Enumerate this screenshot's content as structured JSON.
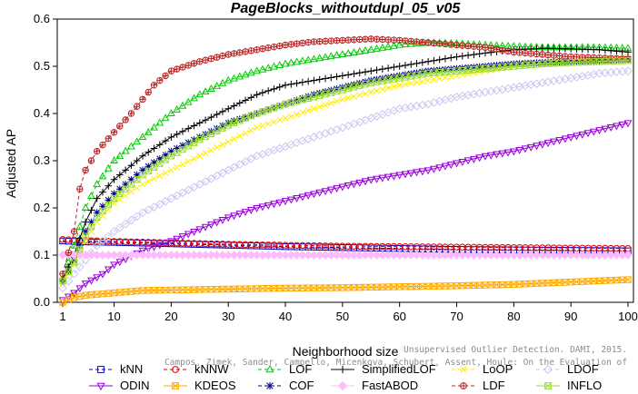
{
  "chart_data": {
    "type": "line",
    "title": "PageBlocks_withoutdupl_05_v05",
    "xlabel": "Neighborhood size",
    "ylabel": "Adjusted AP",
    "xlim": [
      1,
      100
    ],
    "ylim": [
      0,
      0.6
    ],
    "xticks": [
      1,
      10,
      20,
      30,
      40,
      50,
      60,
      70,
      80,
      90,
      100
    ],
    "yticks": [
      0.0,
      0.1,
      0.2,
      0.3,
      0.4,
      0.5,
      0.6
    ],
    "grid": false,
    "legend_position": "bottom",
    "series": [
      {
        "name": "kNN",
        "color": "#0000cc",
        "marker": "square",
        "dash": "4,3",
        "points": [
          [
            1,
            0.13
          ],
          [
            5,
            0.128
          ],
          [
            10,
            0.127
          ],
          [
            20,
            0.124
          ],
          [
            30,
            0.121
          ],
          [
            40,
            0.118
          ],
          [
            50,
            0.116
          ],
          [
            60,
            0.114
          ],
          [
            70,
            0.112
          ],
          [
            80,
            0.111
          ],
          [
            90,
            0.11
          ],
          [
            100,
            0.109
          ]
        ]
      },
      {
        "name": "kNNW",
        "color": "#dd0000",
        "marker": "circle",
        "dash": "4,3",
        "points": [
          [
            1,
            0.133
          ],
          [
            5,
            0.131
          ],
          [
            10,
            0.129
          ],
          [
            20,
            0.126
          ],
          [
            30,
            0.123
          ],
          [
            40,
            0.121
          ],
          [
            50,
            0.119
          ],
          [
            60,
            0.118
          ],
          [
            70,
            0.117
          ],
          [
            80,
            0.116
          ],
          [
            90,
            0.115
          ],
          [
            100,
            0.114
          ]
        ]
      },
      {
        "name": "LOF",
        "color": "#00cc00",
        "marker": "triangle-up",
        "dash": "4,3",
        "points": [
          [
            1,
            0.05
          ],
          [
            3,
            0.12
          ],
          [
            5,
            0.2
          ],
          [
            7,
            0.25
          ],
          [
            10,
            0.3
          ],
          [
            15,
            0.35
          ],
          [
            20,
            0.4
          ],
          [
            25,
            0.44
          ],
          [
            30,
            0.47
          ],
          [
            35,
            0.49
          ],
          [
            40,
            0.505
          ],
          [
            45,
            0.515
          ],
          [
            50,
            0.525
          ],
          [
            55,
            0.535
          ],
          [
            60,
            0.545
          ],
          [
            65,
            0.55
          ],
          [
            70,
            0.548
          ],
          [
            75,
            0.545
          ],
          [
            80,
            0.542
          ],
          [
            85,
            0.54
          ],
          [
            90,
            0.54
          ],
          [
            95,
            0.54
          ],
          [
            100,
            0.538
          ]
        ]
      },
      {
        "name": "SimplifiedLOF",
        "color": "#000000",
        "marker": "plus",
        "dash": "",
        "points": [
          [
            1,
            0.05
          ],
          [
            3,
            0.1
          ],
          [
            5,
            0.17
          ],
          [
            7,
            0.22
          ],
          [
            10,
            0.26
          ],
          [
            15,
            0.31
          ],
          [
            20,
            0.35
          ],
          [
            25,
            0.38
          ],
          [
            30,
            0.41
          ],
          [
            35,
            0.44
          ],
          [
            40,
            0.46
          ],
          [
            45,
            0.47
          ],
          [
            50,
            0.48
          ],
          [
            55,
            0.49
          ],
          [
            60,
            0.5
          ],
          [
            65,
            0.51
          ],
          [
            70,
            0.52
          ],
          [
            75,
            0.528
          ],
          [
            80,
            0.535
          ],
          [
            85,
            0.538
          ],
          [
            90,
            0.537
          ],
          [
            95,
            0.535
          ],
          [
            100,
            0.53
          ]
        ]
      },
      {
        "name": "LoOP",
        "color": "#ffee00",
        "marker": "x",
        "dash": "4,3",
        "points": [
          [
            1,
            0.04
          ],
          [
            3,
            0.08
          ],
          [
            5,
            0.13
          ],
          [
            7,
            0.17
          ],
          [
            10,
            0.21
          ],
          [
            15,
            0.25
          ],
          [
            20,
            0.28
          ],
          [
            25,
            0.31
          ],
          [
            30,
            0.34
          ],
          [
            35,
            0.37
          ],
          [
            40,
            0.39
          ],
          [
            45,
            0.41
          ],
          [
            50,
            0.43
          ],
          [
            55,
            0.445
          ],
          [
            60,
            0.46
          ],
          [
            65,
            0.47
          ],
          [
            70,
            0.48
          ],
          [
            75,
            0.49
          ],
          [
            80,
            0.5
          ],
          [
            85,
            0.505
          ],
          [
            90,
            0.51
          ],
          [
            95,
            0.515
          ],
          [
            100,
            0.52
          ]
        ]
      },
      {
        "name": "LDOF",
        "color": "#c8c8f0",
        "marker": "diamond",
        "dash": "4,3",
        "points": [
          [
            1,
            0.03
          ],
          [
            3,
            0.06
          ],
          [
            5,
            0.09
          ],
          [
            7,
            0.12
          ],
          [
            10,
            0.15
          ],
          [
            15,
            0.19
          ],
          [
            20,
            0.22
          ],
          [
            25,
            0.25
          ],
          [
            30,
            0.28
          ],
          [
            35,
            0.31
          ],
          [
            40,
            0.33
          ],
          [
            45,
            0.35
          ],
          [
            50,
            0.37
          ],
          [
            55,
            0.39
          ],
          [
            60,
            0.41
          ],
          [
            65,
            0.42
          ],
          [
            70,
            0.435
          ],
          [
            75,
            0.445
          ],
          [
            80,
            0.455
          ],
          [
            85,
            0.465
          ],
          [
            90,
            0.475
          ],
          [
            95,
            0.485
          ],
          [
            100,
            0.49
          ]
        ]
      },
      {
        "name": "ODIN",
        "color": "#9900dd",
        "marker": "triangle-down",
        "dash": "",
        "points": [
          [
            1,
            0.005
          ],
          [
            3,
            0.02
          ],
          [
            5,
            0.04
          ],
          [
            8,
            0.06
          ],
          [
            10,
            0.08
          ],
          [
            15,
            0.11
          ],
          [
            20,
            0.13
          ],
          [
            25,
            0.155
          ],
          [
            30,
            0.18
          ],
          [
            35,
            0.2
          ],
          [
            40,
            0.215
          ],
          [
            45,
            0.23
          ],
          [
            50,
            0.245
          ],
          [
            55,
            0.26
          ],
          [
            60,
            0.27
          ],
          [
            65,
            0.28
          ],
          [
            70,
            0.295
          ],
          [
            75,
            0.31
          ],
          [
            80,
            0.32
          ],
          [
            85,
            0.335
          ],
          [
            90,
            0.35
          ],
          [
            95,
            0.365
          ],
          [
            100,
            0.38
          ]
        ]
      },
      {
        "name": "KDEOS",
        "color": "#ffaa00",
        "marker": "square-x",
        "dash": "",
        "points": [
          [
            1,
            0.0
          ],
          [
            3,
            0.01
          ],
          [
            5,
            0.015
          ],
          [
            10,
            0.02
          ],
          [
            15,
            0.025
          ],
          [
            20,
            0.026
          ],
          [
            30,
            0.028
          ],
          [
            40,
            0.03
          ],
          [
            50,
            0.031
          ],
          [
            60,
            0.033
          ],
          [
            70,
            0.035
          ],
          [
            80,
            0.038
          ],
          [
            90,
            0.043
          ],
          [
            100,
            0.048
          ]
        ]
      },
      {
        "name": "COF",
        "color": "#000088",
        "marker": "star",
        "dash": "4,3",
        "points": [
          [
            1,
            0.045
          ],
          [
            3,
            0.09
          ],
          [
            5,
            0.15
          ],
          [
            7,
            0.19
          ],
          [
            10,
            0.23
          ],
          [
            15,
            0.28
          ],
          [
            20,
            0.32
          ],
          [
            25,
            0.35
          ],
          [
            30,
            0.38
          ],
          [
            35,
            0.4
          ],
          [
            40,
            0.42
          ],
          [
            45,
            0.44
          ],
          [
            50,
            0.455
          ],
          [
            55,
            0.47
          ],
          [
            60,
            0.48
          ],
          [
            65,
            0.49
          ],
          [
            70,
            0.495
          ],
          [
            75,
            0.5
          ],
          [
            80,
            0.505
          ],
          [
            85,
            0.508
          ],
          [
            90,
            0.51
          ],
          [
            95,
            0.512
          ],
          [
            100,
            0.515
          ]
        ]
      },
      {
        "name": "FastABOD",
        "color": "#ffbbff",
        "marker": "diamond-filled",
        "dash": "",
        "points": [
          [
            1,
            0.1
          ],
          [
            5,
            0.1
          ],
          [
            10,
            0.1
          ],
          [
            20,
            0.1
          ],
          [
            30,
            0.1
          ],
          [
            40,
            0.1
          ],
          [
            50,
            0.1
          ],
          [
            60,
            0.1
          ],
          [
            70,
            0.1
          ],
          [
            80,
            0.1
          ],
          [
            90,
            0.1
          ],
          [
            100,
            0.1
          ]
        ]
      },
      {
        "name": "LDF",
        "color": "#bb2222",
        "marker": "circle-plus",
        "dash": "4,3",
        "points": [
          [
            1,
            0.06
          ],
          [
            3,
            0.15
          ],
          [
            4,
            0.24
          ],
          [
            5,
            0.28
          ],
          [
            7,
            0.32
          ],
          [
            10,
            0.36
          ],
          [
            13,
            0.4
          ],
          [
            15,
            0.43
          ],
          [
            17,
            0.46
          ],
          [
            20,
            0.49
          ],
          [
            25,
            0.51
          ],
          [
            30,
            0.525
          ],
          [
            35,
            0.535
          ],
          [
            40,
            0.545
          ],
          [
            45,
            0.552
          ],
          [
            50,
            0.555
          ],
          [
            55,
            0.558
          ],
          [
            60,
            0.555
          ],
          [
            65,
            0.55
          ],
          [
            70,
            0.545
          ],
          [
            75,
            0.54
          ],
          [
            80,
            0.53
          ],
          [
            85,
            0.525
          ],
          [
            90,
            0.52
          ],
          [
            95,
            0.518
          ],
          [
            100,
            0.515
          ]
        ]
      },
      {
        "name": "INFLO",
        "color": "#99dd33",
        "marker": "square-x",
        "dash": "",
        "points": [
          [
            1,
            0.045
          ],
          [
            3,
            0.085
          ],
          [
            5,
            0.14
          ],
          [
            7,
            0.18
          ],
          [
            10,
            0.22
          ],
          [
            15,
            0.27
          ],
          [
            20,
            0.31
          ],
          [
            25,
            0.345
          ],
          [
            30,
            0.375
          ],
          [
            35,
            0.4
          ],
          [
            40,
            0.42
          ],
          [
            45,
            0.435
          ],
          [
            50,
            0.45
          ],
          [
            55,
            0.465
          ],
          [
            60,
            0.475
          ],
          [
            65,
            0.485
          ],
          [
            70,
            0.49
          ],
          [
            75,
            0.495
          ],
          [
            80,
            0.5
          ],
          [
            85,
            0.505
          ],
          [
            90,
            0.508
          ],
          [
            95,
            0.51
          ],
          [
            100,
            0.512
          ]
        ]
      }
    ],
    "annotation": "Campos, Zimek, Sander, Campello, Micenkova, Schubert, Assent, Houle: On the Evaluation of Unsupervised Outlier Detection. DAMI, 2015."
  }
}
